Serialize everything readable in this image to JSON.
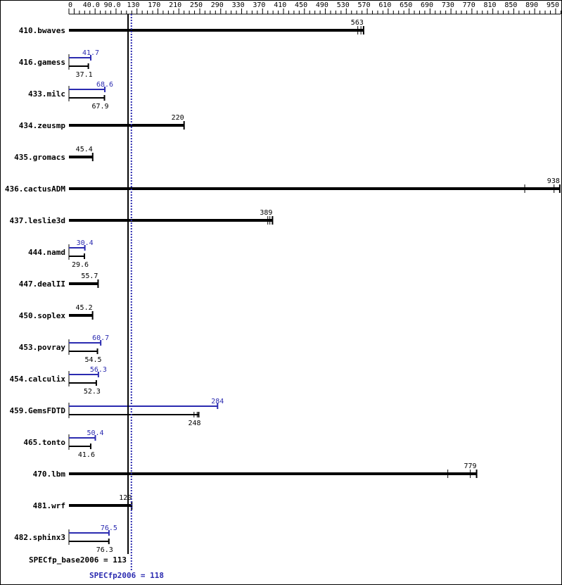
{
  "chart_data": {
    "type": "bar",
    "orientation": "horizontal",
    "xlim": [
      0,
      950
    ],
    "x_ticks": [
      "0",
      "40.0",
      "90.0",
      "130",
      "170",
      "210",
      "250",
      "290",
      "330",
      "370",
      "410",
      "450",
      "490",
      "530",
      "570",
      "610",
      "650",
      "690",
      "730",
      "770",
      "810",
      "850",
      "890",
      "950"
    ],
    "categories": [
      "410.bwaves",
      "416.gamess",
      "433.milc",
      "434.zeusmp",
      "435.gromacs",
      "436.cactusADM",
      "437.leslie3d",
      "444.namd",
      "447.dealII",
      "450.soplex",
      "453.povray",
      "454.calculix",
      "459.GemsFDTD",
      "465.tonto",
      "470.lbm",
      "481.wrf",
      "482.sphinx3"
    ],
    "series": [
      {
        "name": "SPECfp_base2006",
        "color": "#000000",
        "values": [
          563,
          37.1,
          67.9,
          220,
          45.4,
          938,
          389,
          29.6,
          55.7,
          45.2,
          54.5,
          52.3,
          248,
          41.6,
          779,
          120,
          76.3
        ],
        "labels": [
          "563",
          "37.1",
          "67.9",
          "220",
          "45.4",
          "938",
          "389",
          "29.6",
          "55.7",
          "45.2",
          "54.5",
          "52.3",
          "248",
          "41.6",
          "779",
          "120",
          "76.3"
        ]
      },
      {
        "name": "SPECfp2006",
        "color": "#2b2bb0",
        "values": [
          null,
          41.7,
          68.6,
          null,
          null,
          null,
          null,
          30.4,
          null,
          null,
          60.7,
          56.3,
          284,
          50.4,
          null,
          null,
          76.5
        ],
        "labels": [
          "",
          "41.7",
          "68.6",
          "",
          "",
          "",
          "",
          "30.4",
          "",
          "",
          "60.7",
          "56.3",
          "284",
          "50.4",
          "",
          "",
          "76.5"
        ]
      }
    ],
    "run_markers": {
      "410.bwaves": [
        552,
        558
      ],
      "436.cactusADM": [
        871,
        927
      ],
      "437.leslie3d": [
        380,
        384
      ],
      "459.GemsFDTD": [
        239,
        245
      ],
      "470.lbm": [
        724,
        767
      ]
    },
    "reference_lines": [
      {
        "label": "SPECfp_base2006 = 113",
        "value": 113,
        "color": "#000000",
        "style": "solid"
      },
      {
        "label": "SPECfp2006 = 118",
        "value": 118,
        "color": "#2b2bb0",
        "style": "dotted"
      }
    ],
    "grid": false
  }
}
